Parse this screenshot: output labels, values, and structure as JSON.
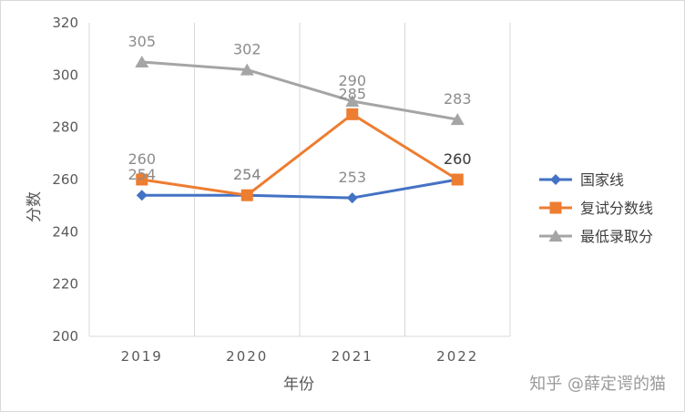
{
  "chart_data": {
    "type": "line",
    "categories": [
      "2019",
      "2020",
      "2021",
      "2022"
    ],
    "xlabel": "年份",
    "ylabel": "分数",
    "ylim": [
      200,
      320
    ],
    "yticks": [
      200,
      220,
      240,
      260,
      280,
      300,
      320
    ],
    "grid": "vertical",
    "legend_position": "right",
    "series": [
      {
        "name": "国家线",
        "values": [
          254,
          254,
          253,
          260
        ],
        "color": "#4472c4",
        "marker": "diamond",
        "labels": [
          "254",
          "254",
          "253",
          "260"
        ]
      },
      {
        "name": "复试分数线",
        "values": [
          260,
          254,
          285,
          260
        ],
        "color": "#ed7d31",
        "marker": "square",
        "labels": [
          "260",
          "254",
          "285",
          "260"
        ]
      },
      {
        "name": "最低录取分",
        "values": [
          305,
          302,
          290,
          283
        ],
        "color": "#a5a5a5",
        "marker": "triangle",
        "labels": [
          "305",
          "302",
          "290",
          "283"
        ]
      }
    ]
  },
  "watermark": "知乎 @薛定谔的猫"
}
